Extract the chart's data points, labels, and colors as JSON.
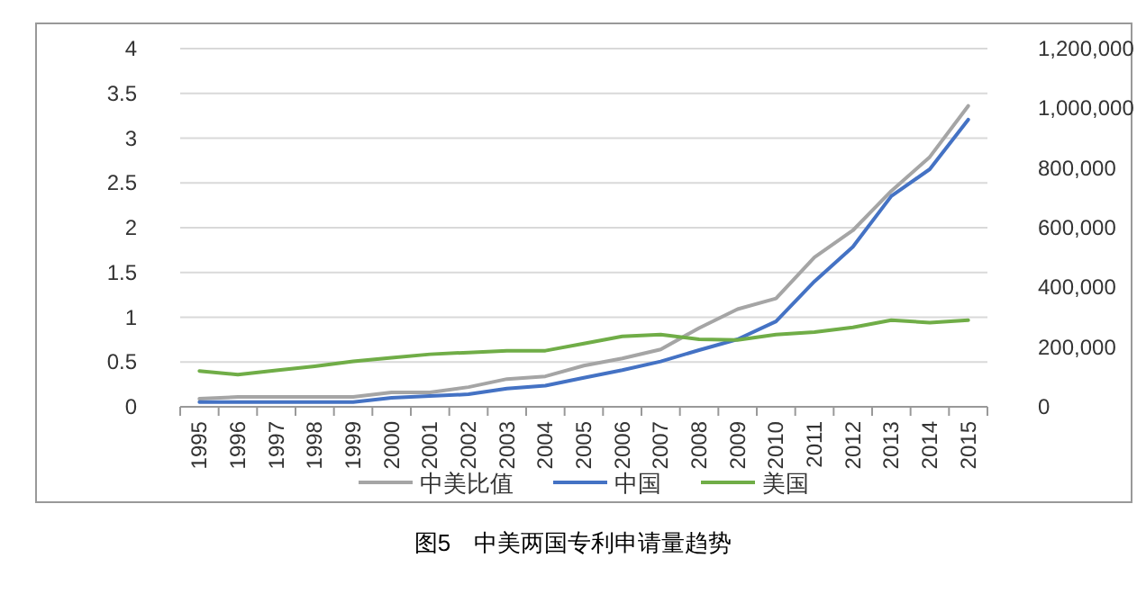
{
  "chart_data": {
    "type": "line",
    "categories": [
      "1995",
      "1996",
      "1997",
      "1998",
      "1999",
      "2000",
      "2001",
      "2002",
      "2003",
      "2004",
      "2005",
      "2006",
      "2007",
      "2008",
      "2009",
      "2010",
      "2011",
      "2012",
      "2013",
      "2014",
      "2015"
    ],
    "series": [
      {
        "name": "中美比值",
        "color": "#a5a5a5",
        "values": [
          0.09,
          0.11,
          0.11,
          0.11,
          0.11,
          0.16,
          0.16,
          0.22,
          0.31,
          0.34,
          0.46,
          0.54,
          0.64,
          0.88,
          1.09,
          1.21,
          1.67,
          1.97,
          2.41,
          2.79,
          3.36
        ]
      },
      {
        "name": "中国",
        "color": "#4472c4",
        "axis": "y2",
        "values": [
          16000,
          16000,
          16000,
          16000,
          16000,
          30000,
          36000,
          42000,
          61000,
          71000,
          97000,
          123000,
          152000,
          190000,
          226000,
          286000,
          420000,
          536000,
          706000,
          796000,
          962000
        ]
      },
      {
        "name": "美国",
        "color": "#70ad47",
        "axis": "y2",
        "values": [
          120000,
          108000,
          122000,
          136000,
          152000,
          164000,
          176000,
          182000,
          188000,
          188000,
          212000,
          236000,
          242000,
          226000,
          224000,
          242000,
          250000,
          266000,
          290000,
          282000,
          290000
        ]
      }
    ],
    "ylim": [
      0,
      4
    ],
    "yticks": [
      0,
      {
        "value": 0.5,
        "label": "0.5"
      },
      1,
      {
        "value": 1.5,
        "label": "1.5"
      },
      2,
      {
        "value": 2.5,
        "label": "2.5"
      },
      3,
      {
        "value": 3.5,
        "label": "3.5"
      },
      4
    ],
    "y2lim": [
      0,
      1200000
    ],
    "y2ticks": [
      0,
      {
        "value": 200000,
        "label": "200,000"
      },
      {
        "value": 400000,
        "label": "400,000"
      },
      {
        "value": 600000,
        "label": "600,000"
      },
      {
        "value": 800000,
        "label": "800,000"
      },
      {
        "value": 1000000,
        "label": "1,000,000"
      },
      {
        "value": 1200000,
        "label": "1,200,000"
      }
    ],
    "grid": "y",
    "legend": "bottom",
    "marker": "none",
    "line_style": "solid",
    "annotations": [
      "图5　中美两国专利申请量趋势"
    ]
  }
}
